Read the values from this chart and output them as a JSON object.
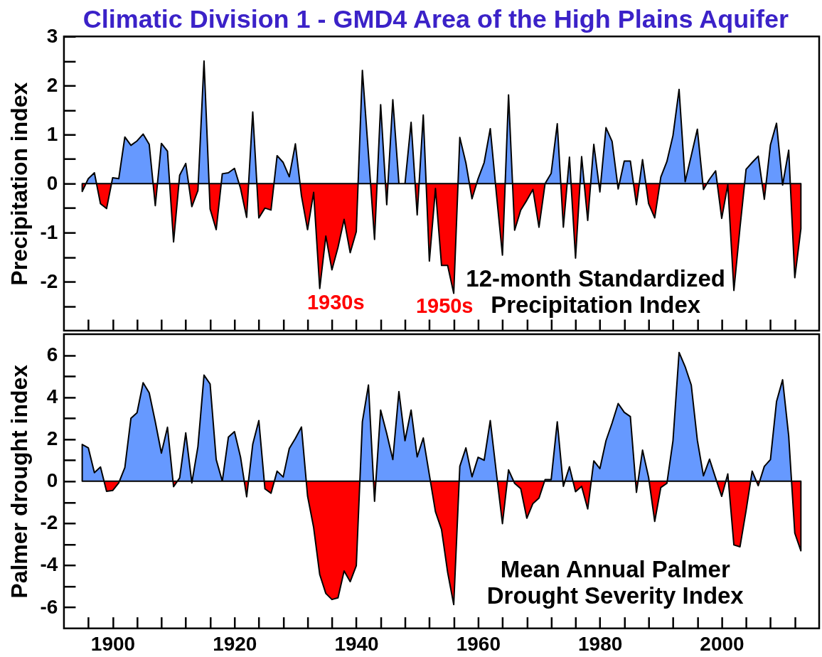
{
  "chart_data": [
    {
      "type": "area",
      "title": "Climatic Division 1 - GMD4 Area of the High Plains Aquifer",
      "ylabel": "Precipitation index",
      "tick_labels": "y",
      "x": [
        1895,
        1896,
        1897,
        1898,
        1899,
        1900,
        1901,
        1902,
        1903,
        1904,
        1905,
        1906,
        1907,
        1908,
        1909,
        1910,
        1911,
        1912,
        1913,
        1914,
        1915,
        1916,
        1917,
        1918,
        1919,
        1920,
        1921,
        1922,
        1923,
        1924,
        1925,
        1926,
        1927,
        1928,
        1929,
        1930,
        1931,
        1932,
        1933,
        1934,
        1935,
        1936,
        1937,
        1938,
        1939,
        1940,
        1941,
        1942,
        1943,
        1944,
        1945,
        1946,
        1947,
        1948,
        1949,
        1950,
        1951,
        1952,
        1953,
        1954,
        1955,
        1956,
        1957,
        1958,
        1959,
        1960,
        1961,
        1962,
        1963,
        1964,
        1965,
        1966,
        1967,
        1968,
        1969,
        1970,
        1971,
        1972,
        1973,
        1974,
        1975,
        1976,
        1977,
        1978,
        1979,
        1980,
        1981,
        1982,
        1983,
        1984,
        1985,
        1986,
        1987,
        1988,
        1989,
        1990,
        1991,
        1992,
        1993,
        1994,
        1995,
        1996,
        1997,
        1998,
        1999,
        2000,
        2001,
        2002,
        2003,
        2004,
        2005,
        2006,
        2007,
        2008,
        2009,
        2010,
        2011,
        2012,
        2013
      ],
      "xlim": [
        1892,
        2016
      ],
      "xticks": [
        {
          "value": 1896,
          "label": null
        },
        1900,
        {
          "value": 1904,
          "label": null
        },
        {
          "value": 1908,
          "label": null
        },
        {
          "value": 1912,
          "label": null
        },
        {
          "value": 1916,
          "label": null
        },
        1920,
        {
          "value": 1924,
          "label": null
        },
        {
          "value": 1928,
          "label": null
        },
        {
          "value": 1932,
          "label": null
        },
        {
          "value": 1936,
          "label": null
        },
        1940,
        {
          "value": 1944,
          "label": null
        },
        {
          "value": 1948,
          "label": null
        },
        {
          "value": 1952,
          "label": null
        },
        {
          "value": 1956,
          "label": null
        },
        1960,
        {
          "value": 1964,
          "label": null
        },
        {
          "value": 1968,
          "label": null
        },
        {
          "value": 1972,
          "label": null
        },
        {
          "value": 1976,
          "label": null
        },
        1980,
        {
          "value": 1984,
          "label": null
        },
        {
          "value": 1988,
          "label": null
        },
        {
          "value": 1992,
          "label": null
        },
        {
          "value": 1996,
          "label": null
        },
        2000,
        {
          "value": 2004,
          "label": null
        },
        {
          "value": 2008,
          "label": null
        },
        {
          "value": 2012,
          "label": null
        }
      ],
      "ylim": [
        -3,
        3
      ],
      "yticks": [
        {
          "value": -2.5,
          "label": null
        },
        -2,
        {
          "value": -1.5,
          "label": null
        },
        -1,
        {
          "value": -0.5,
          "label": null
        },
        0,
        {
          "value": 0.5,
          "label": null
        },
        1,
        {
          "value": 1.5,
          "label": null
        },
        2,
        {
          "value": 2.5,
          "label": null
        },
        3
      ],
      "series": [
        {
          "color": "#000000",
          "values": [
            -0.16,
            0.1,
            0.22,
            -0.41,
            -0.51,
            0.12,
            0.1,
            0.95,
            0.78,
            0.87,
            1.01,
            0.8,
            -0.45,
            0.82,
            0.66,
            -1.19,
            0.17,
            0.41,
            -0.47,
            -0.14,
            2.5,
            -0.52,
            -0.94,
            0.2,
            0.22,
            0.31,
            -0.1,
            -0.69,
            1.46,
            -0.7,
            -0.5,
            -0.54,
            0.57,
            0.43,
            0.14,
            0.81,
            -0.25,
            -0.94,
            -0.18,
            -2.14,
            -1.07,
            -1.76,
            -1.3,
            -0.73,
            -1.41,
            -0.98,
            2.31,
            0.6,
            -1.14,
            1.61,
            -0.43,
            1.71,
            0.0,
            0.0,
            1.25,
            -0.64,
            1.4,
            -1.58,
            -0.1,
            -1.67,
            -1.67,
            -2.24,
            0.94,
            0.42,
            -0.31,
            0.1,
            0.43,
            1.12,
            -0.2,
            -1.46,
            1.81,
            -0.95,
            -0.54,
            -0.34,
            -0.12,
            -0.89,
            0.0,
            0.21,
            1.22,
            -0.89,
            0.54,
            -1.52,
            0.55,
            -0.75,
            0.8,
            -0.17,
            1.14,
            0.86,
            -0.11,
            0.46,
            0.46,
            -0.43,
            0.49,
            -0.41,
            -0.7,
            0.13,
            0.45,
            0.98,
            1.92,
            0.04,
            0.57,
            1.11,
            -0.12,
            0.09,
            0.26,
            -0.71,
            -0.02,
            -2.18,
            -0.9,
            0.29,
            0.43,
            0.56,
            -0.32,
            0.79,
            1.23,
            -0.03,
            0.68,
            -1.92,
            -0.92
          ],
          "colors": [
            "#ff0000",
            "#6699ff",
            "#6699ff",
            "#ff0000",
            "#ff0000",
            "#6699ff",
            "#6699ff",
            "#6699ff",
            "#6699ff",
            "#6699ff",
            "#6699ff",
            "#6699ff",
            "#ff0000",
            "#6699ff",
            "#6699ff",
            "#ff0000",
            "#6699ff",
            "#6699ff",
            "#ff0000",
            "#ff0000",
            "#6699ff",
            "#ff0000",
            "#ff0000",
            "#6699ff",
            "#6699ff",
            "#6699ff",
            "#ff0000",
            "#ff0000",
            "#6699ff",
            "#ff0000",
            "#ff0000",
            "#ff0000",
            "#6699ff",
            "#6699ff",
            "#6699ff",
            "#6699ff",
            "#ff0000",
            "#ff0000",
            "#ff0000",
            "#ff0000",
            "#ff0000",
            "#ff0000",
            "#ff0000",
            "#ff0000",
            "#ff0000",
            "#ff0000",
            "#6699ff",
            "#6699ff",
            "#ff0000",
            "#6699ff",
            "#ff0000",
            "#6699ff",
            "#6699ff",
            "#6699ff",
            "#6699ff",
            "#ff0000",
            "#6699ff",
            "#ff0000",
            "#ff0000",
            "#ff0000",
            "#ff0000",
            "#ff0000",
            "#6699ff",
            "#6699ff",
            "#ff0000",
            "#6699ff",
            "#6699ff",
            "#6699ff",
            "#ff0000",
            "#ff0000",
            "#6699ff",
            "#ff0000",
            "#ff0000",
            "#ff0000",
            "#ff0000",
            "#ff0000",
            "#6699ff",
            "#6699ff",
            "#6699ff",
            "#ff0000",
            "#6699ff",
            "#ff0000",
            "#6699ff",
            "#ff0000",
            "#6699ff",
            "#ff0000",
            "#6699ff",
            "#6699ff",
            "#ff0000",
            "#6699ff",
            "#6699ff",
            "#ff0000",
            "#6699ff",
            "#ff0000",
            "#ff0000",
            "#6699ff",
            "#6699ff",
            "#6699ff",
            "#6699ff",
            "#6699ff",
            "#6699ff",
            "#6699ff",
            "#ff0000",
            "#6699ff",
            "#6699ff",
            "#ff0000",
            "#ff0000",
            "#ff0000",
            "#ff0000",
            "#6699ff",
            "#6699ff",
            "#6699ff",
            "#ff0000",
            "#6699ff",
            "#6699ff",
            "#ff0000",
            "#6699ff",
            "#ff0000",
            "#ff0000"
          ]
        }
      ],
      "annotations": [
        "12-month Standardized\nPrecipitation Index",
        "1930s",
        "1950s"
      ]
    },
    {
      "type": "area",
      "ylabel": "Palmer drought index",
      "x": [
        1895,
        1896,
        1897,
        1898,
        1899,
        1900,
        1901,
        1902,
        1903,
        1904,
        1905,
        1906,
        1907,
        1908,
        1909,
        1910,
        1911,
        1912,
        1913,
        1914,
        1915,
        1916,
        1917,
        1918,
        1919,
        1920,
        1921,
        1922,
        1923,
        1924,
        1925,
        1926,
        1927,
        1928,
        1929,
        1930,
        1931,
        1932,
        1933,
        1934,
        1935,
        1936,
        1937,
        1938,
        1939,
        1940,
        1941,
        1942,
        1943,
        1944,
        1945,
        1946,
        1947,
        1948,
        1949,
        1950,
        1951,
        1952,
        1953,
        1954,
        1955,
        1956,
        1957,
        1958,
        1959,
        1960,
        1961,
        1962,
        1963,
        1964,
        1965,
        1966,
        1967,
        1968,
        1969,
        1970,
        1971,
        1972,
        1973,
        1974,
        1975,
        1976,
        1977,
        1978,
        1979,
        1980,
        1981,
        1982,
        1983,
        1984,
        1985,
        1986,
        1987,
        1988,
        1989,
        1990,
        1991,
        1992,
        1993,
        1994,
        1995,
        1996,
        1997,
        1998,
        1999,
        2000,
        2001,
        2002,
        2003,
        2004,
        2005,
        2006,
        2007,
        2008,
        2009,
        2010,
        2011,
        2012,
        2013
      ],
      "xlim": [
        1892,
        2016
      ],
      "xticks": [
        {
          "value": 1896,
          "label": null
        },
        1900,
        {
          "value": 1904,
          "label": null
        },
        {
          "value": 1908,
          "label": null
        },
        {
          "value": 1912,
          "label": null
        },
        {
          "value": 1916,
          "label": null
        },
        1920,
        {
          "value": 1924,
          "label": null
        },
        {
          "value": 1928,
          "label": null
        },
        {
          "value": 1932,
          "label": null
        },
        {
          "value": 1936,
          "label": null
        },
        1940,
        {
          "value": 1944,
          "label": null
        },
        {
          "value": 1948,
          "label": null
        },
        {
          "value": 1952,
          "label": null
        },
        {
          "value": 1956,
          "label": null
        },
        1960,
        {
          "value": 1964,
          "label": null
        },
        {
          "value": 1968,
          "label": null
        },
        {
          "value": 1972,
          "label": null
        },
        {
          "value": 1976,
          "label": null
        },
        1980,
        {
          "value": 1984,
          "label": null
        },
        {
          "value": 1988,
          "label": null
        },
        {
          "value": 1992,
          "label": null
        },
        {
          "value": 1996,
          "label": null
        },
        2000,
        {
          "value": 2004,
          "label": null
        },
        {
          "value": 2008,
          "label": null
        },
        {
          "value": 2012,
          "label": null
        }
      ],
      "ylim": [
        -7,
        7
      ],
      "yticks": [
        -6,
        {
          "value": -5,
          "label": null
        },
        -4,
        {
          "value": -3,
          "label": null
        },
        -2,
        {
          "value": -1,
          "label": null
        },
        0,
        {
          "value": 1,
          "label": null
        },
        2,
        {
          "value": 3,
          "label": null
        },
        4,
        {
          "value": 5,
          "label": null
        },
        6
      ],
      "series": [
        {
          "color": "#000000",
          "values": [
            1.75,
            1.59,
            0.41,
            0.68,
            -0.48,
            -0.44,
            -0.08,
            0.65,
            3.0,
            3.26,
            4.69,
            4.21,
            2.83,
            1.34,
            2.57,
            -0.26,
            0.16,
            2.3,
            -0.08,
            1.65,
            5.05,
            4.63,
            1.03,
            0.0,
            2.1,
            2.36,
            1.14,
            -0.74,
            1.76,
            2.89,
            -0.36,
            -0.57,
            0.48,
            0.2,
            1.56,
            2.04,
            2.58,
            -0.7,
            -2.2,
            -4.44,
            -5.34,
            -5.63,
            -5.55,
            -4.27,
            -4.78,
            -4.02,
            2.83,
            4.58,
            -0.95,
            3.39,
            2.27,
            1.03,
            4.27,
            1.93,
            3.39,
            1.16,
            2.06,
            0.3,
            -1.45,
            -2.3,
            -4.33,
            -5.87,
            0.71,
            1.59,
            0.21,
            1.14,
            1.0,
            2.89,
            0.4,
            -2.02,
            0.54,
            -0.1,
            -0.35,
            -1.76,
            -1.06,
            -0.8,
            0.08,
            0.08,
            2.83,
            -0.24,
            0.69,
            -0.5,
            -0.24,
            -1.32,
            0.97,
            0.6,
            1.93,
            2.77,
            3.7,
            3.28,
            3.08,
            -0.53,
            1.48,
            0.18,
            -1.91,
            -0.3,
            -0.1,
            1.93,
            6.13,
            5.45,
            4.58,
            1.95,
            0.26,
            1.05,
            0.15,
            -0.72,
            0.35,
            -3.03,
            -3.12,
            -1.4,
            0.48,
            -0.21,
            0.71,
            1.03,
            3.79,
            4.83,
            2.15,
            -2.47,
            -3.31
          ],
          "colors": [
            "#6699ff",
            "#6699ff",
            "#6699ff",
            "#6699ff",
            "#ff0000",
            "#ff0000",
            "#ff0000",
            "#6699ff",
            "#6699ff",
            "#6699ff",
            "#6699ff",
            "#6699ff",
            "#6699ff",
            "#6699ff",
            "#6699ff",
            "#ff0000",
            "#6699ff",
            "#6699ff",
            "#ff0000",
            "#6699ff",
            "#6699ff",
            "#6699ff",
            "#6699ff",
            "#6699ff",
            "#6699ff",
            "#6699ff",
            "#6699ff",
            "#ff0000",
            "#6699ff",
            "#6699ff",
            "#ff0000",
            "#ff0000",
            "#6699ff",
            "#6699ff",
            "#6699ff",
            "#6699ff",
            "#6699ff",
            "#ff0000",
            "#ff0000",
            "#ff0000",
            "#ff0000",
            "#ff0000",
            "#ff0000",
            "#ff0000",
            "#ff0000",
            "#ff0000",
            "#6699ff",
            "#6699ff",
            "#ff0000",
            "#6699ff",
            "#6699ff",
            "#6699ff",
            "#6699ff",
            "#6699ff",
            "#6699ff",
            "#6699ff",
            "#6699ff",
            "#6699ff",
            "#ff0000",
            "#ff0000",
            "#ff0000",
            "#ff0000",
            "#6699ff",
            "#6699ff",
            "#6699ff",
            "#6699ff",
            "#6699ff",
            "#6699ff",
            "#6699ff",
            "#ff0000",
            "#6699ff",
            "#ff0000",
            "#ff0000",
            "#ff0000",
            "#ff0000",
            "#ff0000",
            "#6699ff",
            "#6699ff",
            "#6699ff",
            "#ff0000",
            "#6699ff",
            "#ff0000",
            "#ff0000",
            "#ff0000",
            "#6699ff",
            "#6699ff",
            "#6699ff",
            "#6699ff",
            "#6699ff",
            "#6699ff",
            "#6699ff",
            "#ff0000",
            "#6699ff",
            "#6699ff",
            "#ff0000",
            "#ff0000",
            "#ff0000",
            "#6699ff",
            "#6699ff",
            "#6699ff",
            "#6699ff",
            "#6699ff",
            "#6699ff",
            "#6699ff",
            "#6699ff",
            "#ff0000",
            "#6699ff",
            "#ff0000",
            "#ff0000",
            "#ff0000",
            "#6699ff",
            "#ff0000",
            "#6699ff",
            "#6699ff",
            "#6699ff",
            "#6699ff",
            "#6699ff",
            "#ff0000",
            "#ff0000"
          ]
        }
      ],
      "annotations": [
        "Mean Annual Palmer\nDrought Severity Index"
      ]
    }
  ]
}
